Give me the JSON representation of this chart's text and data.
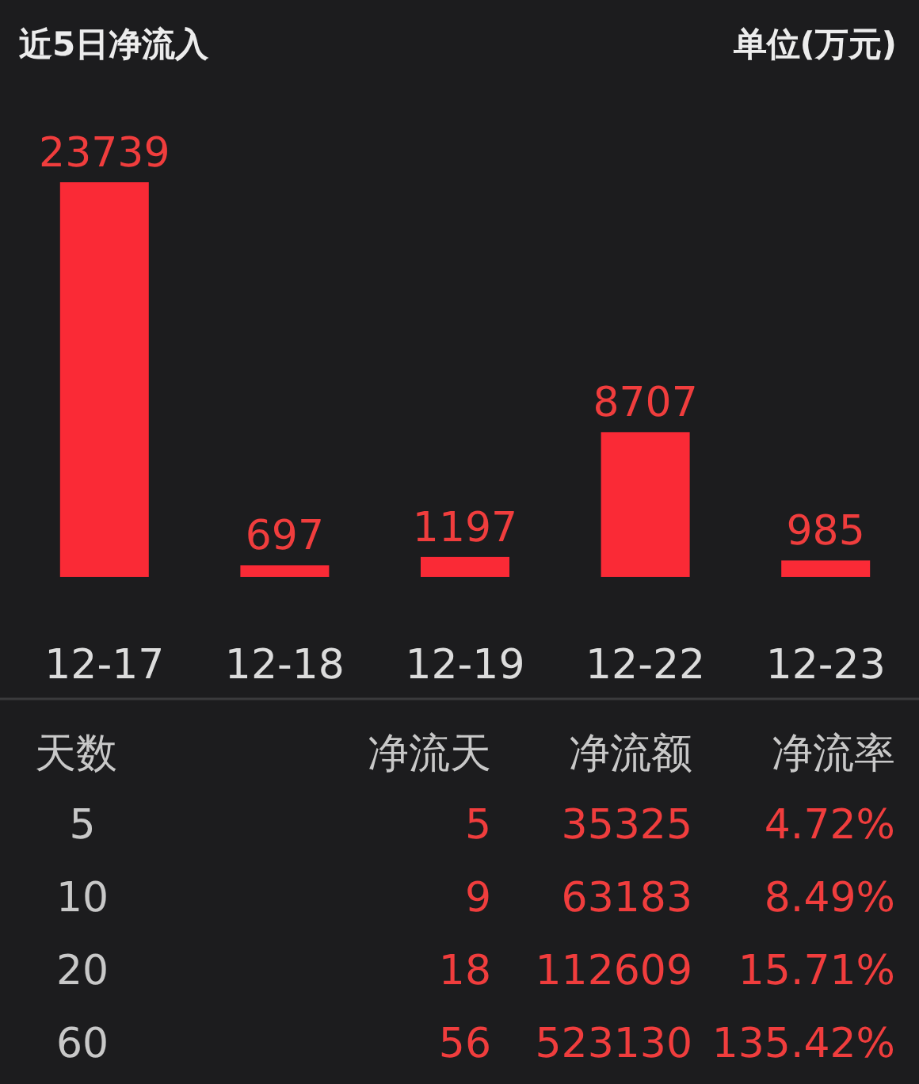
{
  "chart_data": [
    {
      "type": "bar",
      "title": "近5日净流入",
      "subtitle": "单位(万元)",
      "categories": [
        "12-17",
        "12-18",
        "12-19",
        "12-22",
        "12-23"
      ],
      "values": [
        23739,
        697,
        1197,
        8707,
        985
      ],
      "color": "#fa2a36",
      "data_labels": true
    },
    {
      "type": "other",
      "annotations": [
        "天数",
        "净流天",
        "净流额",
        "净流率",
        "5",
        "5",
        "35325",
        "4.72%",
        "10",
        "9",
        "63183",
        "8.49%",
        "20",
        "18",
        "112609",
        "15.71%",
        "60",
        "56",
        "523130",
        "135.42%"
      ]
    }
  ]
}
